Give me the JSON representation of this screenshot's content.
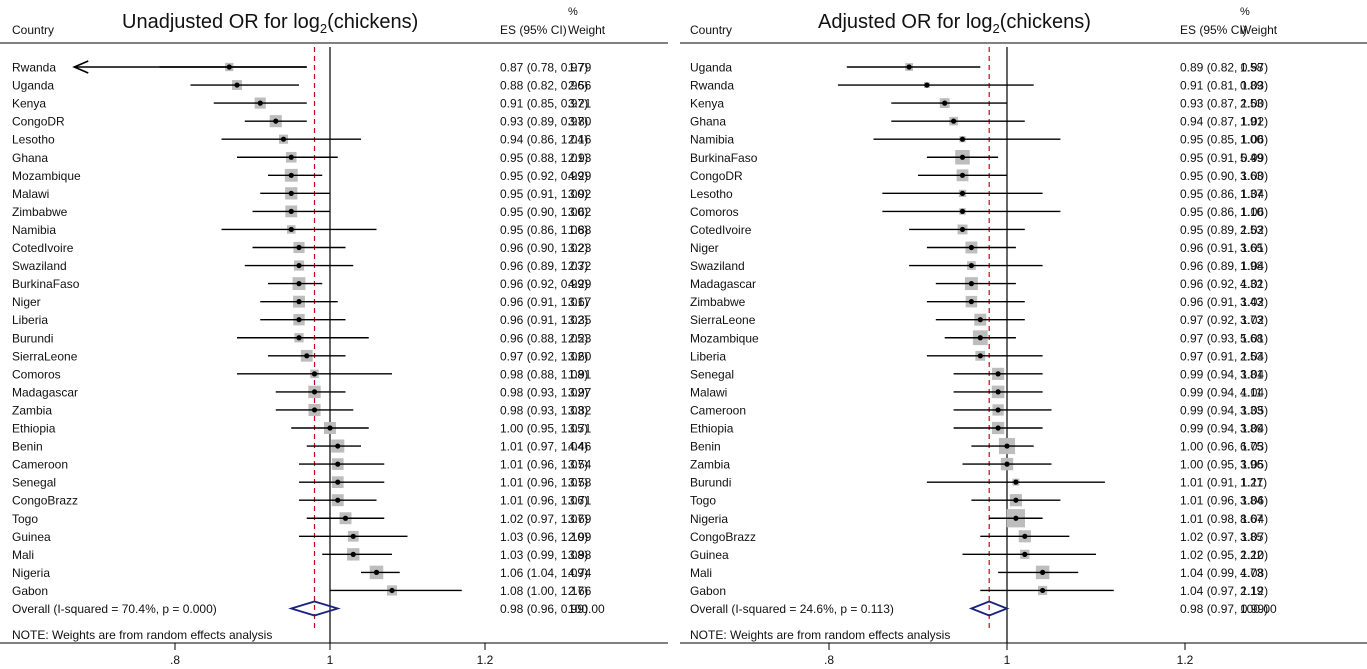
{
  "colors": {
    "ci_line": "#000000",
    "weight_box": "#bdbdbd",
    "point": "#000000",
    "null_line": "#000000",
    "overall_line": "#d0021b",
    "diamond": "#1a237e"
  },
  "chart_data": [
    {
      "type": "forest",
      "title": "Unadjusted OR for log2(chickens)",
      "title_main": "Unadjusted OR for log",
      "title_sub": "2",
      "title_end": "(chickens)",
      "col_country": "Country",
      "col_es": "ES (95% CI)",
      "col_weight_1": "%",
      "col_weight_2": "Weight",
      "x_ticks": [
        0.8,
        1,
        1.2
      ],
      "x_tick_labels": [
        ".8",
        "1",
        "1.2"
      ],
      "xlim": [
        0.65,
        1.24
      ],
      "null_value": 1,
      "overall_value": 0.98,
      "note": "NOTE: Weights are from random effects analysis",
      "rows": [
        {
          "country": "Rwanda",
          "es": 0.87,
          "lo": 0.78,
          "hi": 0.97,
          "es_text": "0.87 (0.78, 0.97)",
          "weight": "1.79",
          "lo_arrow": true
        },
        {
          "country": "Uganda",
          "es": 0.88,
          "lo": 0.82,
          "hi": 0.96,
          "es_text": "0.88 (0.82, 0.96)",
          "weight": "2.56"
        },
        {
          "country": "Kenya",
          "es": 0.91,
          "lo": 0.85,
          "hi": 0.97,
          "es_text": "0.91 (0.85, 0.97)",
          "weight": "3.21"
        },
        {
          "country": "CongoDR",
          "es": 0.93,
          "lo": 0.89,
          "hi": 0.97,
          "es_text": "0.93 (0.89, 0.97)",
          "weight": "3.80"
        },
        {
          "country": "Lesotho",
          "es": 0.94,
          "lo": 0.86,
          "hi": 1.04,
          "es_text": "0.94 (0.86, 1.04)",
          "weight": "2.16"
        },
        {
          "country": "Ghana",
          "es": 0.95,
          "lo": 0.88,
          "hi": 1.01,
          "es_text": "0.95 (0.88, 1.01)",
          "weight": "2.93"
        },
        {
          "country": "Mozambique",
          "es": 0.95,
          "lo": 0.92,
          "hi": 0.99,
          "es_text": "0.95 (0.92, 0.99)",
          "weight": "4.29"
        },
        {
          "country": "Malawi",
          "es": 0.95,
          "lo": 0.91,
          "hi": 1.0,
          "es_text": "0.95 (0.91, 1.00)",
          "weight": "3.92"
        },
        {
          "country": "Zimbabwe",
          "es": 0.95,
          "lo": 0.9,
          "hi": 1.0,
          "es_text": "0.95 (0.90, 1.00)",
          "weight": "3.62"
        },
        {
          "country": "Namibia",
          "es": 0.95,
          "lo": 0.86,
          "hi": 1.06,
          "es_text": "0.95 (0.86, 1.06)",
          "weight": "1.88"
        },
        {
          "country": "CotedIvoire",
          "es": 0.96,
          "lo": 0.9,
          "hi": 1.02,
          "es_text": "0.96 (0.90, 1.02)",
          "weight": "3.23"
        },
        {
          "country": "Swaziland",
          "es": 0.96,
          "lo": 0.89,
          "hi": 1.03,
          "es_text": "0.96 (0.89, 1.03)",
          "weight": "2.72"
        },
        {
          "country": "BurkinaFaso",
          "es": 0.96,
          "lo": 0.92,
          "hi": 0.99,
          "es_text": "0.96 (0.92, 0.99)",
          "weight": "4.29"
        },
        {
          "country": "Niger",
          "es": 0.96,
          "lo": 0.91,
          "hi": 1.01,
          "es_text": "0.96 (0.91, 1.01)",
          "weight": "3.67"
        },
        {
          "country": "Liberia",
          "es": 0.96,
          "lo": 0.91,
          "hi": 1.02,
          "es_text": "0.96 (0.91, 1.02)",
          "weight": "3.35"
        },
        {
          "country": "Burundi",
          "es": 0.96,
          "lo": 0.88,
          "hi": 1.05,
          "es_text": "0.96 (0.88, 1.05)",
          "weight": "2.23"
        },
        {
          "country": "SierraLeone",
          "es": 0.97,
          "lo": 0.92,
          "hi": 1.02,
          "es_text": "0.97 (0.92, 1.02)",
          "weight": "3.60"
        },
        {
          "country": "Comoros",
          "es": 0.98,
          "lo": 0.88,
          "hi": 1.08,
          "es_text": "0.98 (0.88, 1.08)",
          "weight": "1.91"
        },
        {
          "country": "Madagascar",
          "es": 0.98,
          "lo": 0.93,
          "hi": 1.02,
          "es_text": "0.98 (0.93, 1.02)",
          "weight": "3.97"
        },
        {
          "country": "Zambia",
          "es": 0.98,
          "lo": 0.93,
          "hi": 1.03,
          "es_text": "0.98 (0.93, 1.03)",
          "weight": "3.82"
        },
        {
          "country": "Ethiopia",
          "es": 1.0,
          "lo": 0.95,
          "hi": 1.05,
          "es_text": "1.00 (0.95, 1.05)",
          "weight": "3.71"
        },
        {
          "country": "Benin",
          "es": 1.01,
          "lo": 0.97,
          "hi": 1.04,
          "es_text": "1.01 (0.97, 1.04)",
          "weight": "4.46"
        },
        {
          "country": "Cameroon",
          "es": 1.01,
          "lo": 0.96,
          "hi": 1.07,
          "es_text": "1.01 (0.96, 1.07)",
          "weight": "3.54"
        },
        {
          "country": "Senegal",
          "es": 1.01,
          "lo": 0.96,
          "hi": 1.07,
          "es_text": "1.01 (0.96, 1.07)",
          "weight": "3.58"
        },
        {
          "country": "CongoBrazz",
          "es": 1.01,
          "lo": 0.96,
          "hi": 1.06,
          "es_text": "1.01 (0.96, 1.06)",
          "weight": "3.71"
        },
        {
          "country": "Togo",
          "es": 1.02,
          "lo": 0.97,
          "hi": 1.07,
          "es_text": "1.02 (0.97, 1.07)",
          "weight": "3.69"
        },
        {
          "country": "Guinea",
          "es": 1.03,
          "lo": 0.96,
          "hi": 1.1,
          "es_text": "1.03 (0.96, 1.10)",
          "weight": "2.99"
        },
        {
          "country": "Mali",
          "es": 1.03,
          "lo": 0.99,
          "hi": 1.08,
          "es_text": "1.03 (0.99, 1.08)",
          "weight": "3.98"
        },
        {
          "country": "Nigeria",
          "es": 1.06,
          "lo": 1.04,
          "hi": 1.09,
          "es_text": "1.06 (1.04, 1.09)",
          "weight": "4.74"
        },
        {
          "country": "Gabon",
          "es": 1.08,
          "lo": 1.0,
          "hi": 1.17,
          "es_text": "1.08 (1.00, 1.17)",
          "weight": "2.66"
        }
      ],
      "overall": {
        "label": "Overall  (I-squared = 70.4%, p = 0.000)",
        "es": 0.98,
        "lo": 0.96,
        "hi": 0.99,
        "es_text": "0.98 (0.96, 0.99)",
        "weight": "100.00"
      }
    },
    {
      "type": "forest",
      "title": "Adjusted OR for log2(chickens)",
      "title_main": "Adjusted OR for log",
      "title_sub": "2",
      "title_end": "(chickens)",
      "col_country": "Country",
      "col_es": "ES (95% CI)",
      "col_weight_1": "%",
      "col_weight_2": "Weight",
      "x_ticks": [
        0.8,
        1,
        1.2
      ],
      "x_tick_labels": [
        ".8",
        "1",
        "1.2"
      ],
      "xlim": [
        0.65,
        1.24
      ],
      "null_value": 1,
      "overall_value": 0.98,
      "note": "NOTE: Weights are from random effects analysis",
      "rows": [
        {
          "country": "Uganda",
          "es": 0.89,
          "lo": 0.82,
          "hi": 0.97,
          "es_text": "0.89 (0.82, 0.97)",
          "weight": "1.58"
        },
        {
          "country": "Rwanda",
          "es": 0.91,
          "lo": 0.81,
          "hi": 1.03,
          "es_text": "0.91 (0.81, 1.03)",
          "weight": "0.89"
        },
        {
          "country": "Kenya",
          "es": 0.93,
          "lo": 0.87,
          "hi": 1.0,
          "es_text": "0.93 (0.87, 1.00)",
          "weight": "2.53"
        },
        {
          "country": "Ghana",
          "es": 0.94,
          "lo": 0.87,
          "hi": 1.02,
          "es_text": "0.94 (0.87, 1.02)",
          "weight": "1.91"
        },
        {
          "country": "Namibia",
          "es": 0.95,
          "lo": 0.85,
          "hi": 1.06,
          "es_text": "0.95 (0.85, 1.06)",
          "weight": "1.00"
        },
        {
          "country": "BurkinaFaso",
          "es": 0.95,
          "lo": 0.91,
          "hi": 0.99,
          "es_text": "0.95 (0.91, 0.99)",
          "weight": "5.49"
        },
        {
          "country": "CongoDR",
          "es": 0.95,
          "lo": 0.9,
          "hi": 1.0,
          "es_text": "0.95 (0.90, 1.00)",
          "weight": "3.63"
        },
        {
          "country": "Lesotho",
          "es": 0.95,
          "lo": 0.86,
          "hi": 1.04,
          "es_text": "0.95 (0.86, 1.04)",
          "weight": "1.37"
        },
        {
          "country": "Comoros",
          "es": 0.95,
          "lo": 0.86,
          "hi": 1.06,
          "es_text": "0.95 (0.86, 1.06)",
          "weight": "1.10"
        },
        {
          "country": "CotedIvoire",
          "es": 0.95,
          "lo": 0.89,
          "hi": 1.02,
          "es_text": "0.95 (0.89, 1.02)",
          "weight": "2.53"
        },
        {
          "country": "Niger",
          "es": 0.96,
          "lo": 0.91,
          "hi": 1.01,
          "es_text": "0.96 (0.91, 1.01)",
          "weight": "3.65"
        },
        {
          "country": "Swaziland",
          "es": 0.96,
          "lo": 0.89,
          "hi": 1.04,
          "es_text": "0.96 (0.89, 1.04)",
          "weight": "1.98"
        },
        {
          "country": "Madagascar",
          "es": 0.96,
          "lo": 0.92,
          "hi": 1.01,
          "es_text": "0.96 (0.92, 1.01)",
          "weight": "4.32"
        },
        {
          "country": "Zimbabwe",
          "es": 0.96,
          "lo": 0.91,
          "hi": 1.02,
          "es_text": "0.96 (0.91, 1.02)",
          "weight": "3.43"
        },
        {
          "country": "SierraLeone",
          "es": 0.97,
          "lo": 0.92,
          "hi": 1.02,
          "es_text": "0.97 (0.92, 1.02)",
          "weight": "3.73"
        },
        {
          "country": "Mozambique",
          "es": 0.97,
          "lo": 0.93,
          "hi": 1.01,
          "es_text": "0.97 (0.93, 1.01)",
          "weight": "5.68"
        },
        {
          "country": "Liberia",
          "es": 0.97,
          "lo": 0.91,
          "hi": 1.04,
          "es_text": "0.97 (0.91, 1.04)",
          "weight": "2.53"
        },
        {
          "country": "Senegal",
          "es": 0.99,
          "lo": 0.94,
          "hi": 1.04,
          "es_text": "0.99 (0.94, 1.04)",
          "weight": "3.81"
        },
        {
          "country": "Malawi",
          "es": 0.99,
          "lo": 0.94,
          "hi": 1.04,
          "es_text": "0.99 (0.94, 1.04)",
          "weight": "4.11"
        },
        {
          "country": "Cameroon",
          "es": 0.99,
          "lo": 0.94,
          "hi": 1.05,
          "es_text": "0.99 (0.94, 1.05)",
          "weight": "3.33"
        },
        {
          "country": "Ethiopia",
          "es": 0.99,
          "lo": 0.94,
          "hi": 1.04,
          "es_text": "0.99 (0.94, 1.04)",
          "weight": "3.89"
        },
        {
          "country": "Benin",
          "es": 1.0,
          "lo": 0.96,
          "hi": 1.03,
          "es_text": "1.00 (0.96, 1.03)",
          "weight": "6.75"
        },
        {
          "country": "Zambia",
          "es": 1.0,
          "lo": 0.95,
          "hi": 1.05,
          "es_text": "1.00 (0.95, 1.05)",
          "weight": "3.96"
        },
        {
          "country": "Burundi",
          "es": 1.01,
          "lo": 0.91,
          "hi": 1.11,
          "es_text": "1.01 (0.91, 1.11)",
          "weight": "1.27"
        },
        {
          "country": "Togo",
          "es": 1.01,
          "lo": 0.96,
          "hi": 1.06,
          "es_text": "1.01 (0.96, 1.06)",
          "weight": "3.84"
        },
        {
          "country": "Nigeria",
          "es": 1.01,
          "lo": 0.98,
          "hi": 1.04,
          "es_text": "1.01 (0.98, 1.04)",
          "weight": "8.67"
        },
        {
          "country": "CongoBrazz",
          "es": 1.02,
          "lo": 0.97,
          "hi": 1.07,
          "es_text": "1.02 (0.97, 1.07)",
          "weight": "3.85"
        },
        {
          "country": "Guinea",
          "es": 1.02,
          "lo": 0.95,
          "hi": 1.1,
          "es_text": "1.02 (0.95, 1.10)",
          "weight": "2.22"
        },
        {
          "country": "Mali",
          "es": 1.04,
          "lo": 0.99,
          "hi": 1.08,
          "es_text": "1.04 (0.99, 1.08)",
          "weight": "4.73"
        },
        {
          "country": "Gabon",
          "es": 1.04,
          "lo": 0.97,
          "hi": 1.12,
          "es_text": "1.04 (0.97, 1.12)",
          "weight": "2.19"
        }
      ],
      "overall": {
        "label": "Overall  (I-squared = 24.6%, p = 0.113)",
        "es": 0.98,
        "lo": 0.97,
        "hi": 0.99,
        "es_text": "0.98 (0.97, 0.99)",
        "weight": "100.00"
      }
    }
  ]
}
